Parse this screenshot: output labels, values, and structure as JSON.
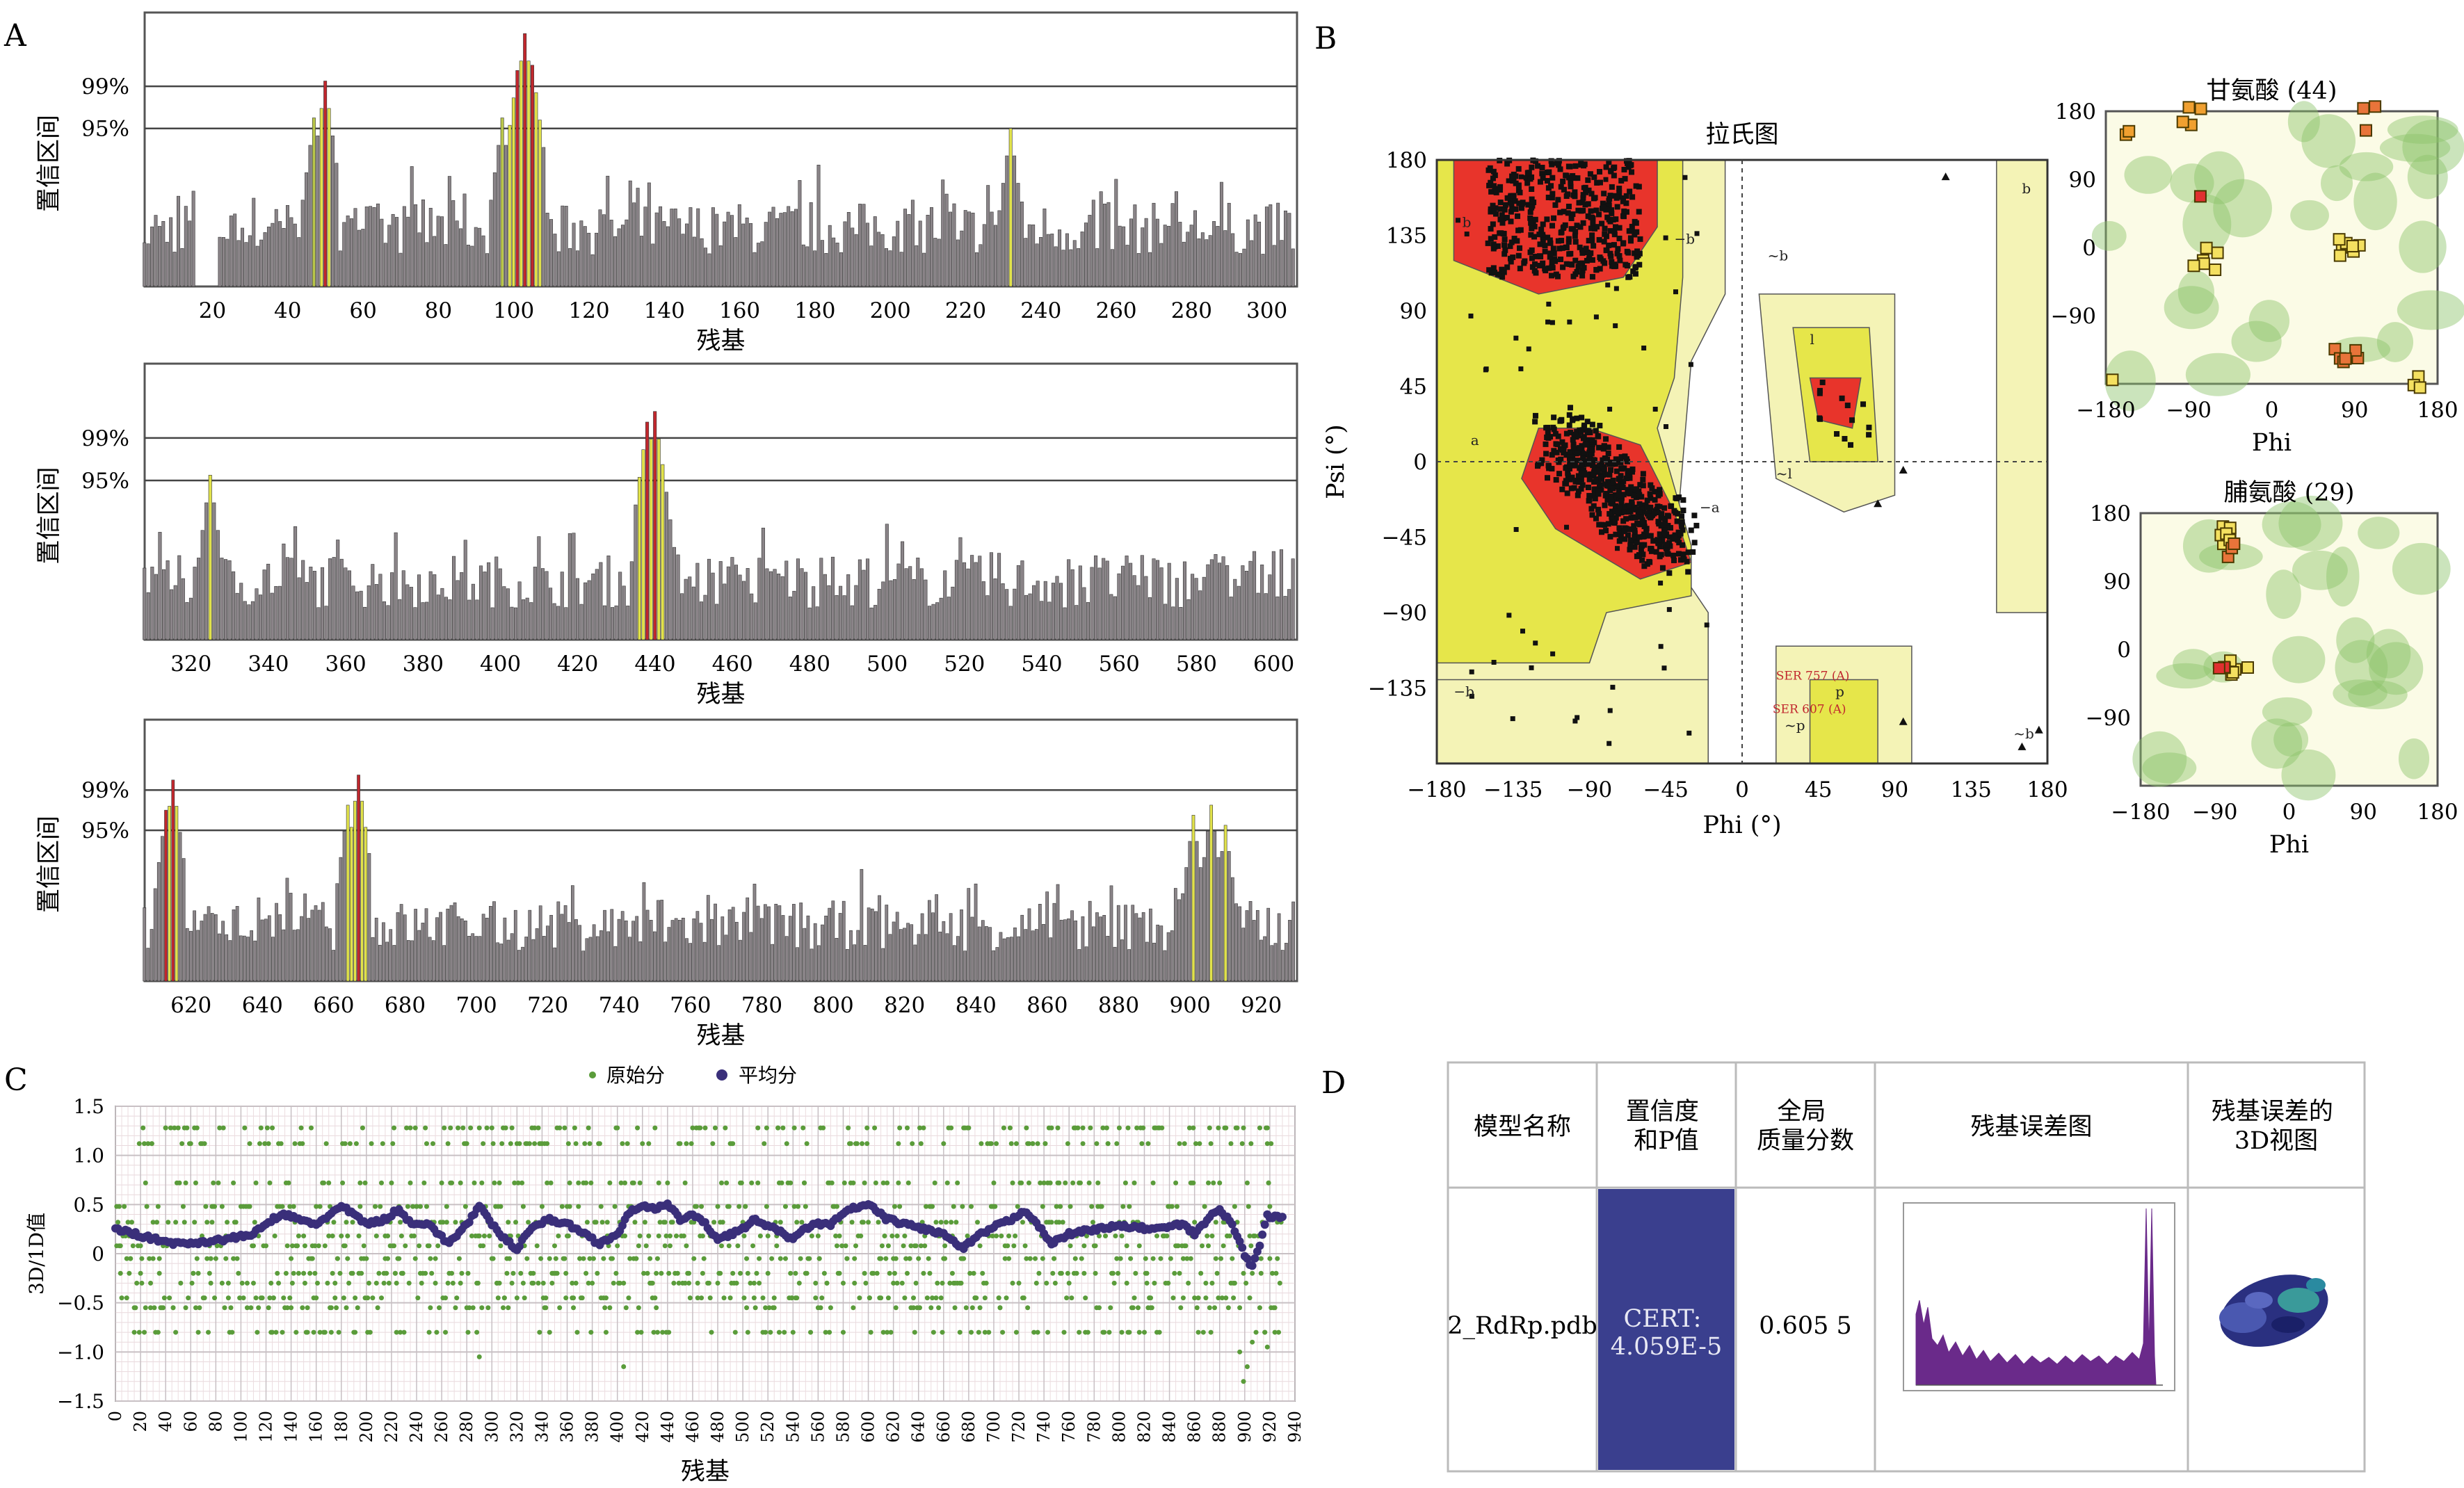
{
  "panel_labels": {
    "A": "A",
    "B": "B",
    "C": "C",
    "D": "D"
  },
  "colors": {
    "bar": "#8a8488",
    "bar_green": "#b9c64a",
    "bar_yellow": "#e1e24a",
    "bar_red": "#c1272d",
    "rama_core": "#e8342b",
    "rama_allowed": "#e6e64a",
    "rama_generous": "#f4f3b6",
    "rama_bg": "#fbfbe6",
    "raw": "#5a9c3a",
    "avg": "#3a2f7a",
    "cert_bg": "#3a3f8e"
  },
  "chart_data": [
    {
      "id": "A1",
      "type": "bar",
      "xlabel": "残基",
      "ylabel": "置信区间",
      "thresholds": [
        {
          "label": "99%",
          "value": 99
        },
        {
          "label": "95%",
          "value": 95
        }
      ],
      "xlim": [
        2,
        308
      ],
      "ylim": [
        80,
        106
      ],
      "xticks": [
        20,
        40,
        60,
        80,
        100,
        120,
        140,
        160,
        180,
        200,
        220,
        240,
        260,
        280,
        300
      ],
      "peaks": [
        {
          "residue": 47,
          "value": 96,
          "color": "green"
        },
        {
          "residue": 50,
          "value": 99.5,
          "color": "red"
        },
        {
          "residue": 97,
          "value": 96,
          "color": "green"
        },
        {
          "residue": 101,
          "value": 100.5,
          "color": "red"
        },
        {
          "residue": 103,
          "value": 104,
          "color": "red"
        },
        {
          "residue": 105,
          "value": 101,
          "color": "red"
        },
        {
          "residue": 232,
          "value": 95,
          "color": "yellow"
        }
      ]
    },
    {
      "id": "A2",
      "type": "bar",
      "xlabel": "残基",
      "ylabel": "置信区间",
      "thresholds": [
        {
          "label": "99%",
          "value": 99
        },
        {
          "label": "95%",
          "value": 95
        }
      ],
      "xlim": [
        308,
        606
      ],
      "ylim": [
        80,
        106
      ],
      "xticks": [
        320,
        340,
        360,
        380,
        400,
        420,
        440,
        460,
        480,
        500,
        520,
        540,
        560,
        580,
        600
      ],
      "peaks": [
        {
          "residue": 325,
          "value": 95.5,
          "color": "yellow"
        },
        {
          "residue": 438,
          "value": 100.5,
          "color": "red"
        },
        {
          "residue": 440,
          "value": 101.5,
          "color": "red"
        },
        {
          "residue": 442,
          "value": 96.5,
          "color": "yellow"
        }
      ]
    },
    {
      "id": "A3",
      "type": "bar",
      "xlabel": "残基",
      "ylabel": "置信区间",
      "thresholds": [
        {
          "label": "99%",
          "value": 99
        },
        {
          "label": "95%",
          "value": 95
        }
      ],
      "xlim": [
        607,
        930
      ],
      "ylim": [
        80,
        106
      ],
      "xticks": [
        620,
        640,
        660,
        680,
        700,
        720,
        740,
        760,
        780,
        800,
        820,
        840,
        860,
        880,
        900,
        920
      ],
      "peaks": [
        {
          "residue": 613,
          "value": 97,
          "color": "red"
        },
        {
          "residue": 615,
          "value": 100,
          "color": "red"
        },
        {
          "residue": 664,
          "value": 97.5,
          "color": "yellow"
        },
        {
          "residue": 667,
          "value": 100.5,
          "color": "red"
        },
        {
          "residue": 901,
          "value": 96.5,
          "color": "yellow"
        },
        {
          "residue": 906,
          "value": 97.5,
          "color": "yellow"
        },
        {
          "residue": 910,
          "value": 95.5,
          "color": "yellow"
        }
      ]
    },
    {
      "id": "B-main",
      "type": "scatter",
      "title": "拉氏图",
      "xlabel": "Phi (°)",
      "ylabel": "Psi (°)",
      "xlim": [
        -180,
        180
      ],
      "ylim": [
        -180,
        180
      ],
      "xticks": [
        -180,
        -135,
        -90,
        -45,
        0,
        45,
        90,
        135,
        180
      ],
      "yticks": [
        180,
        135,
        90,
        45,
        0,
        -45,
        -90,
        -135
      ],
      "xtick_labels": [
        "−180",
        "−135",
        "−90",
        "−45",
        "0",
        "45",
        "90",
        "135",
        "180"
      ],
      "ytick_labels": [
        "180",
        "135",
        "90",
        "45",
        "0",
        "−45",
        "−90",
        "−135"
      ],
      "region_labels": [
        "b",
        "a",
        "−b",
        "−a",
        "l",
        "p",
        "~b",
        "~l",
        "~p",
        "b",
        "−b",
        "~b"
      ],
      "annotations": [
        "SER 757 (A)",
        "SER 607 (A)"
      ]
    },
    {
      "id": "B-gly",
      "type": "scatter",
      "title": "甘氨酸 (44)",
      "xlabel": "Phi",
      "xlim": [
        -180,
        180
      ],
      "ylim": [
        -180,
        180
      ],
      "xticks": [
        -180,
        -90,
        0,
        90,
        180
      ],
      "yticks": [
        180,
        90,
        0,
        -90
      ],
      "xtick_labels": [
        "−180",
        "−90",
        "0",
        "90",
        "180"
      ],
      "ytick_labels": [
        "180",
        "90",
        "0",
        "−90"
      ]
    },
    {
      "id": "B-pro",
      "type": "scatter",
      "title": "脯氨酸 (29)",
      "xlabel": "Phi",
      "xlim": [
        -180,
        180
      ],
      "ylim": [
        -180,
        180
      ],
      "xticks": [
        -180,
        -90,
        0,
        90,
        180
      ],
      "yticks": [
        180,
        90,
        0,
        -90
      ],
      "xtick_labels": [
        "−180",
        "−90",
        "0",
        "90",
        "180"
      ],
      "ytick_labels": [
        "180",
        "90",
        "0",
        "−90"
      ]
    },
    {
      "id": "C",
      "type": "line",
      "xlabel": "残基",
      "ylabel": "3D/1D值",
      "xlim": [
        0,
        940
      ],
      "ylim": [
        -1.5,
        1.5
      ],
      "xticks": [
        0,
        20,
        40,
        60,
        80,
        100,
        120,
        140,
        160,
        180,
        200,
        220,
        240,
        260,
        280,
        300,
        320,
        340,
        360,
        380,
        400,
        420,
        440,
        460,
        480,
        500,
        520,
        540,
        560,
        580,
        600,
        620,
        640,
        660,
        680,
        700,
        720,
        740,
        760,
        780,
        800,
        820,
        840,
        860,
        880,
        900,
        920,
        940
      ],
      "yticks": [
        1.5,
        1.0,
        0.5,
        0,
        -0.5,
        -1.0,
        -1.5
      ],
      "ytick_labels": [
        "1.5",
        "1.0",
        "0.5",
        "0",
        "−0.5",
        "−1.0",
        "−1.5"
      ],
      "legend": {
        "raw": "原始分",
        "avg": "平均分",
        "position": "top-center"
      },
      "avg_curve": [
        [
          0,
          0.25
        ],
        [
          10,
          0.22
        ],
        [
          30,
          0.15
        ],
        [
          50,
          0.1
        ],
        [
          70,
          0.12
        ],
        [
          90,
          0.15
        ],
        [
          110,
          0.2
        ],
        [
          125,
          0.35
        ],
        [
          135,
          0.4
        ],
        [
          145,
          0.35
        ],
        [
          160,
          0.3
        ],
        [
          180,
          0.48
        ],
        [
          190,
          0.4
        ],
        [
          200,
          0.3
        ],
        [
          215,
          0.35
        ],
        [
          225,
          0.45
        ],
        [
          235,
          0.32
        ],
        [
          250,
          0.3
        ],
        [
          265,
          0.1
        ],
        [
          280,
          0.3
        ],
        [
          290,
          0.48
        ],
        [
          300,
          0.3
        ],
        [
          310,
          0.15
        ],
        [
          320,
          0.05
        ],
        [
          330,
          0.25
        ],
        [
          345,
          0.35
        ],
        [
          360,
          0.3
        ],
        [
          375,
          0.2
        ],
        [
          385,
          0.1
        ],
        [
          400,
          0.2
        ],
        [
          410,
          0.42
        ],
        [
          420,
          0.5
        ],
        [
          430,
          0.45
        ],
        [
          440,
          0.5
        ],
        [
          450,
          0.35
        ],
        [
          460,
          0.4
        ],
        [
          470,
          0.3
        ],
        [
          480,
          0.15
        ],
        [
          500,
          0.25
        ],
        [
          510,
          0.35
        ],
        [
          525,
          0.25
        ],
        [
          540,
          0.15
        ],
        [
          555,
          0.3
        ],
        [
          570,
          0.3
        ],
        [
          585,
          0.45
        ],
        [
          600,
          0.5
        ],
        [
          615,
          0.35
        ],
        [
          630,
          0.3
        ],
        [
          645,
          0.25
        ],
        [
          660,
          0.2
        ],
        [
          675,
          0.05
        ],
        [
          690,
          0.2
        ],
        [
          705,
          0.3
        ],
        [
          715,
          0.35
        ],
        [
          725,
          0.45
        ],
        [
          735,
          0.3
        ],
        [
          745,
          0.1
        ],
        [
          760,
          0.2
        ],
        [
          780,
          0.25
        ],
        [
          800,
          0.28
        ],
        [
          830,
          0.25
        ],
        [
          850,
          0.3
        ],
        [
          860,
          0.2
        ],
        [
          870,
          0.35
        ],
        [
          880,
          0.45
        ],
        [
          890,
          0.3
        ],
        [
          898,
          0.05
        ],
        [
          905,
          -0.15
        ],
        [
          912,
          0.1
        ],
        [
          918,
          0.38
        ],
        [
          930,
          0.37
        ]
      ]
    }
  ],
  "table_d": {
    "headers": [
      "模型名称",
      "置信度和P值",
      "全局质量分数",
      "残基误差图",
      "残基误差的3D视图"
    ],
    "header_lines": [
      [
        "模型名称"
      ],
      [
        "置信度",
        "和P值"
      ],
      [
        "全局",
        "质量分数"
      ],
      [
        "残基误差图"
      ],
      [
        "残基误差的",
        "3D视图"
      ]
    ],
    "row": {
      "model": "2_RdRp.pdb",
      "cert_label": "CERT:",
      "cert_value": "4.059E-5",
      "score": "0.605 5"
    }
  }
}
